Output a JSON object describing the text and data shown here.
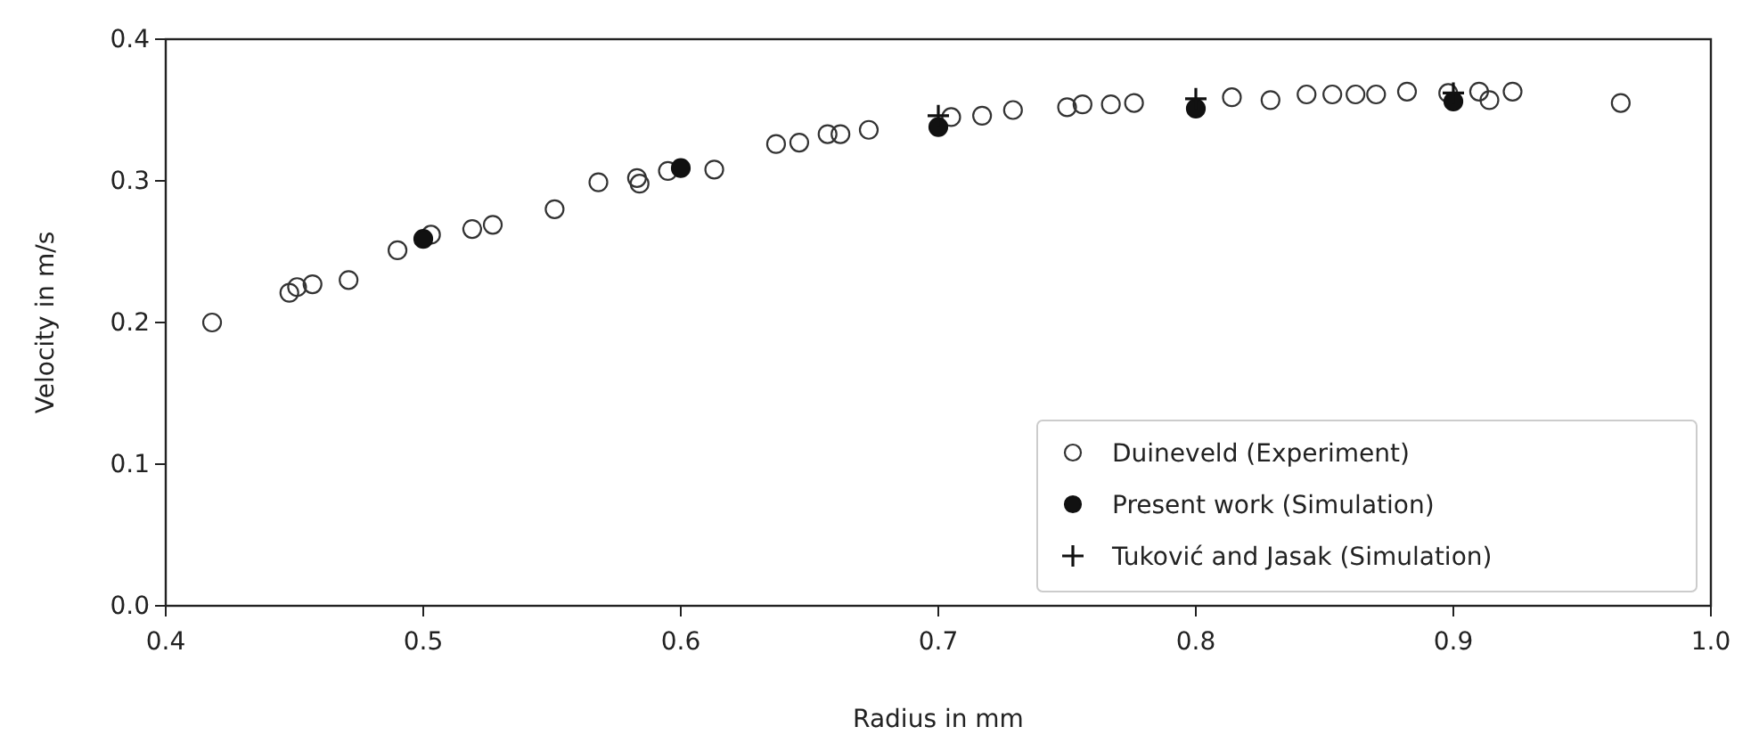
{
  "chart_data": {
    "type": "scatter",
    "xlabel": "Radius in mm",
    "ylabel": "Velocity in m/s",
    "xlim": [
      0.4,
      1.0
    ],
    "xticks": [
      0.4,
      0.5,
      0.6,
      0.7,
      0.8,
      0.9,
      {
        "value": 1,
        "label": "1.0"
      }
    ],
    "ylim": [
      0.0,
      0.4
    ],
    "yticks": [
      {
        "value": 0,
        "label": "0.0"
      },
      0.1,
      0.2,
      0.3,
      0.4
    ],
    "legend": "bottom right",
    "grid": false,
    "series": [
      {
        "name": "Duineveld (Experiment)",
        "color": "#333333",
        "marker": "circle",
        "x": [
          0.418,
          0.448,
          0.451,
          0.457,
          0.471,
          0.49,
          0.503,
          0.519,
          0.527,
          0.551,
          0.568,
          0.583,
          0.584,
          0.595,
          0.613,
          0.637,
          0.646,
          0.657,
          0.662,
          0.673,
          0.705,
          0.717,
          0.729,
          0.75,
          0.756,
          0.767,
          0.776,
          0.814,
          0.829,
          0.843,
          0.853,
          0.862,
          0.87,
          0.882,
          0.898,
          0.91,
          0.914,
          0.923,
          0.965
        ],
        "values": [
          0.2,
          0.221,
          0.225,
          0.227,
          0.23,
          0.251,
          0.262,
          0.266,
          0.269,
          0.28,
          0.299,
          0.302,
          0.298,
          0.307,
          0.308,
          0.326,
          0.327,
          0.333,
          0.333,
          0.336,
          0.345,
          0.346,
          0.35,
          0.352,
          0.354,
          0.354,
          0.355,
          0.359,
          0.357,
          0.361,
          0.361,
          0.361,
          0.361,
          0.363,
          0.362,
          0.363,
          0.357,
          0.363,
          0.355
        ]
      },
      {
        "name": "Present work (Simulation)",
        "color": "#111111",
        "marker": "circle",
        "x": [
          0.5,
          0.6,
          0.7,
          0.8,
          0.9
        ],
        "values": [
          0.259,
          0.309,
          0.338,
          0.351,
          0.356
        ]
      },
      {
        "name": "Tuković and Jasak (Simulation)",
        "color": "#111111",
        "marker": "cross",
        "x": [
          0.7,
          0.8,
          0.9
        ],
        "values": [
          0.346,
          0.358,
          0.362
        ]
      }
    ]
  }
}
